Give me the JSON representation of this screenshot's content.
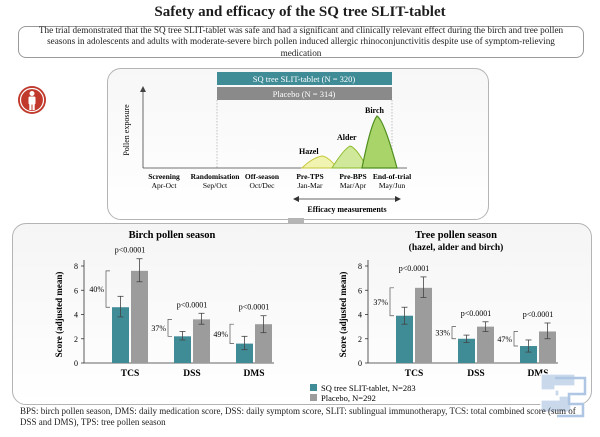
{
  "title": "Safety and efficacy of the SQ tree SLIT-tablet",
  "summary": "The trial demonstrated that the SQ tree SLIT-tablet was safe and had a significant and clinically relevant effect during the birch and tree pollen seasons in adolescents and adults with moderate-severe birch pollen induced allergic rhinoconjunctivitis despite use of symptom-relieving medication",
  "timeline": {
    "active_bar": "SQ tree SLIT-tablet (N = 320)",
    "placebo_bar": "Placebo (N = 314)",
    "y_label": "Pollen exposure",
    "pollens": [
      "Hazel",
      "Alder",
      "Birch"
    ],
    "milestones": [
      {
        "name": "Screening",
        "period": "Apr-Oct"
      },
      {
        "name": "Randomisation",
        "period": "Sep/Oct"
      },
      {
        "name": "Off-season",
        "period": "Oct/Dec"
      },
      {
        "name": "Pre-TPS",
        "period": "Jan-Mar"
      },
      {
        "name": "Pre-BPS",
        "period": "Mar/Apr"
      },
      {
        "name": "End-of-trial",
        "period": "May/Jun"
      }
    ],
    "efficacy_label": "Efficacy measurements"
  },
  "colors": {
    "active": "#3f8b96",
    "placebo": "#9c9c9c",
    "accent": "#c0392b"
  },
  "chart_data": [
    {
      "type": "bar",
      "title": "Birch pollen season",
      "subtitle": "",
      "ylabel": "Score (adjusted mean)",
      "ylim": [
        0,
        8
      ],
      "yticks": [
        "0",
        "2",
        "4",
        "6",
        "8"
      ],
      "categories": [
        "TCS",
        "DSS",
        "DMS"
      ],
      "series": [
        {
          "name": "SQ tree SLIT-tablet, N=283",
          "values": [
            4.6,
            2.2,
            1.6
          ],
          "err_low": [
            3.8,
            1.9,
            1.1
          ],
          "err_high": [
            5.5,
            2.6,
            2.2
          ]
        },
        {
          "name": "Placebo, N=292",
          "values": [
            7.6,
            3.6,
            3.2
          ],
          "err_low": [
            6.7,
            3.2,
            2.5
          ],
          "err_high": [
            8.6,
            4.1,
            3.9
          ]
        }
      ],
      "reductions": [
        "40%",
        "37%",
        "49%"
      ],
      "pvalues": [
        "p<0.0001",
        "p<0.0001",
        "p<0.0001"
      ]
    },
    {
      "type": "bar",
      "title": "Tree pollen season",
      "subtitle": "(hazel, alder and birch)",
      "ylabel": "Score (adjusted mean)",
      "ylim": [
        0,
        8
      ],
      "yticks": [
        "0",
        "2",
        "4",
        "6",
        "8"
      ],
      "categories": [
        "TCS",
        "DSS",
        "DMS"
      ],
      "series": [
        {
          "name": "SQ tree SLIT-tablet, N=283",
          "values": [
            3.9,
            2.0,
            1.4
          ],
          "err_low": [
            3.2,
            1.7,
            0.9
          ],
          "err_high": [
            4.6,
            2.3,
            1.9
          ]
        },
        {
          "name": "Placebo, N=292",
          "values": [
            6.2,
            3.0,
            2.6
          ],
          "err_low": [
            5.4,
            2.6,
            2.0
          ],
          "err_high": [
            7.1,
            3.4,
            3.3
          ]
        }
      ],
      "reductions": [
        "37%",
        "33%",
        "47%"
      ],
      "pvalues": [
        "p<0.0001",
        "p<0.0001",
        "p<0.0001"
      ]
    }
  ],
  "legend": {
    "active": "SQ tree SLIT-tablet, N=283",
    "placebo": "Placebo, N=292"
  },
  "footer": "BPS: birch pollen season, DMS: daily medication score, DSS: daily symptom score, SLIT: sublingual immunotherapy, TCS: total combined score (sum of DSS and DMS), TPS: tree pollen season"
}
